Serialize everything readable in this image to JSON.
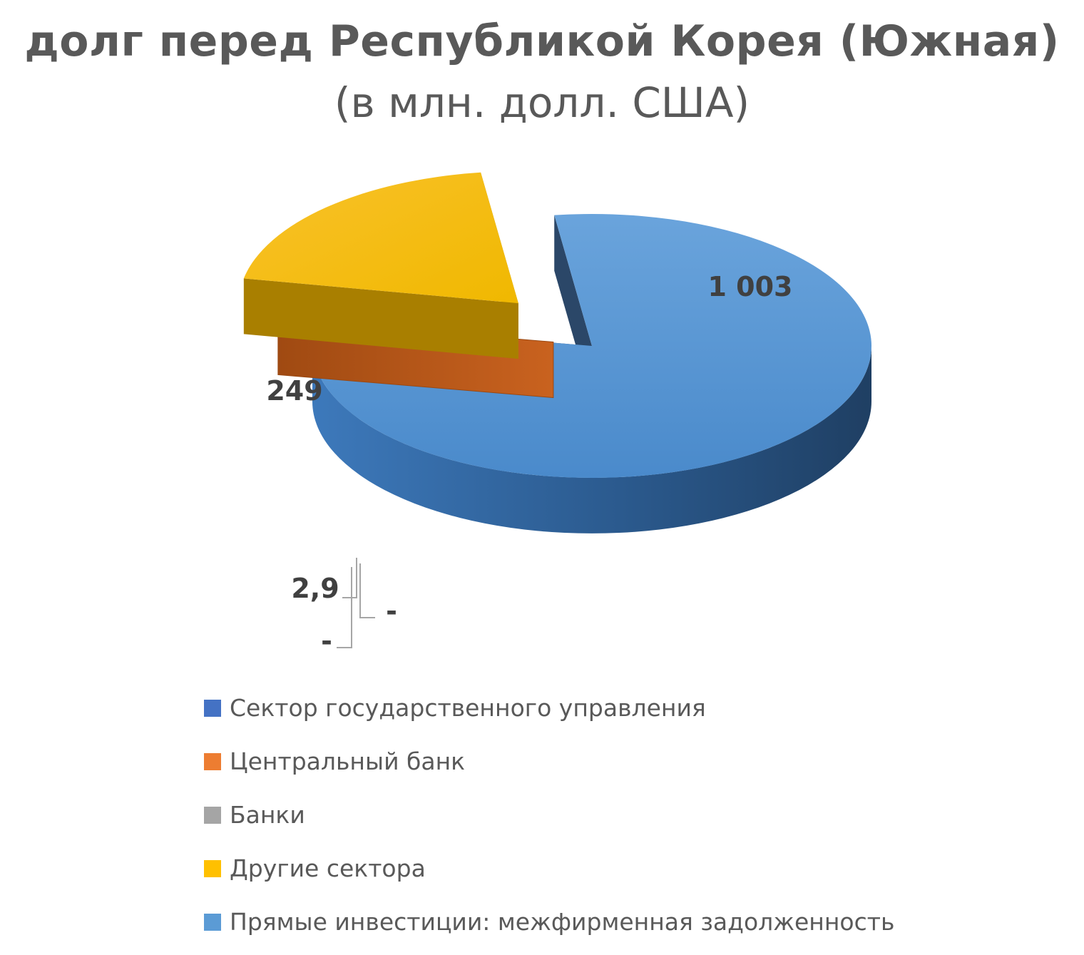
{
  "chart_data": {
    "type": "pie",
    "title": "долг перед Республикой Корея (Южная)",
    "subtitle": "(в млн. долл. США)",
    "slices": [
      {
        "name": "Сектор государственного управления",
        "value": 0,
        "label": "-",
        "color": "#4472C4"
      },
      {
        "name": "Центральный банк",
        "value": 2.9,
        "label": "2,9",
        "color": "#ED7D31"
      },
      {
        "name": "Банки",
        "value": 0,
        "label": "-",
        "color": "#A5A5A5"
      },
      {
        "name": "Другие сектора",
        "value": 249,
        "label": "249",
        "color": "#FFC000"
      },
      {
        "name": "Прямые инвестиции: межфирменная задолженность",
        "value": 1003,
        "label": "1 003",
        "color": "#5B9BD5"
      }
    ],
    "legend_position": "bottom",
    "style": "3d-exploded"
  }
}
